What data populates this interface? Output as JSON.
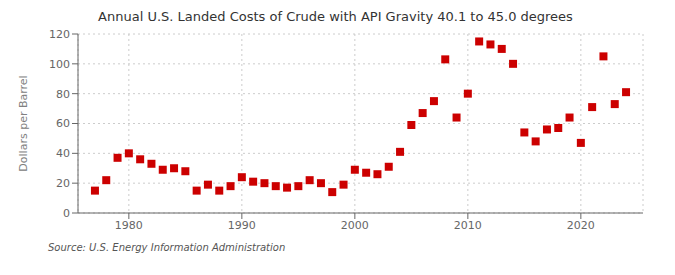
{
  "chart_data": {
    "type": "scatter",
    "title": "Annual U.S. Landed Costs of Crude with API Gravity 40.1 to 45.0 degrees",
    "y_label": "Dollars per Barrel",
    "annotations": [
      "Source: U.S. Energy Information Administration"
    ],
    "x": [
      1977,
      1978,
      1979,
      1980,
      1981,
      1982,
      1983,
      1984,
      1985,
      1986,
      1987,
      1988,
      1989,
      1990,
      1991,
      1992,
      1993,
      1994,
      1995,
      1996,
      1997,
      1998,
      1999,
      2000,
      2001,
      2002,
      2003,
      2004,
      2005,
      2006,
      2007,
      2008,
      2009,
      2010,
      2011,
      2012,
      2013,
      2014,
      2015,
      2016,
      2017,
      2018,
      2019,
      2020,
      2021,
      2022,
      2023,
      2024
    ],
    "values": [
      15,
      22,
      37,
      40,
      36,
      33,
      29,
      30,
      28,
      15,
      19,
      15,
      18,
      24,
      21,
      20,
      18,
      17,
      18,
      22,
      20,
      14,
      19,
      29,
      27,
      26,
      31,
      41,
      59,
      67,
      75,
      103,
      64,
      80,
      115,
      113,
      110,
      100,
      54,
      48,
      56,
      57,
      64,
      47,
      71,
      105,
      73,
      81
    ],
    "color": "#cc0000",
    "marker": "square",
    "xlim": [
      1975.5,
      2025.5
    ],
    "ylim": [
      0,
      120
    ],
    "xticks": [
      1980,
      1990,
      2000,
      2010,
      2020
    ],
    "yticks": [
      0,
      20,
      40,
      60,
      80,
      100,
      120
    ],
    "grid": true
  }
}
